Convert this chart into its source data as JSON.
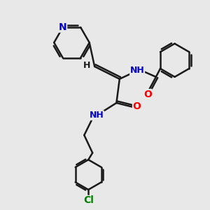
{
  "bg_color": "#e8e8e8",
  "bond_color": "#1a1a1a",
  "N_color": "#0000cc",
  "O_color": "#ff0000",
  "Cl_color": "#008000",
  "line_width": 1.8,
  "figsize": [
    3.0,
    3.0
  ],
  "dpi": 100,
  "xlim": [
    0,
    10
  ],
  "ylim": [
    0,
    10
  ]
}
